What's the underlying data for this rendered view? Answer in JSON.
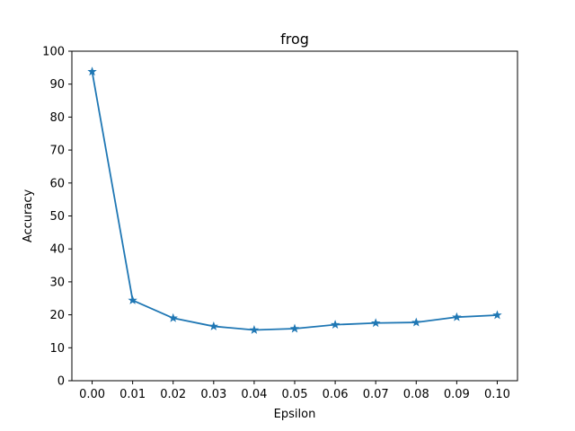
{
  "chart_data": {
    "type": "line",
    "title": "frog",
    "xlabel": "Epsilon",
    "ylabel": "Accuracy",
    "x": [
      0.0,
      0.01,
      0.02,
      0.03,
      0.04,
      0.05,
      0.06,
      0.07,
      0.08,
      0.09,
      0.1
    ],
    "series": [
      {
        "name": "",
        "values": [
          93.8,
          24.4,
          19.0,
          16.5,
          15.4,
          15.8,
          17.0,
          17.5,
          17.7,
          19.3,
          19.9
        ],
        "color": "#1f77b4",
        "marker": "star"
      }
    ],
    "xticks": [
      "0.00",
      "0.01",
      "0.02",
      "0.03",
      "0.04",
      "0.05",
      "0.06",
      "0.07",
      "0.08",
      "0.09",
      "0.10"
    ],
    "yticks": [
      "0",
      "10",
      "20",
      "30",
      "40",
      "50",
      "60",
      "70",
      "80",
      "90",
      "100"
    ],
    "xlim": [
      -0.005,
      0.105
    ],
    "ylim": [
      0,
      100
    ],
    "grid": false,
    "legend": "none"
  }
}
